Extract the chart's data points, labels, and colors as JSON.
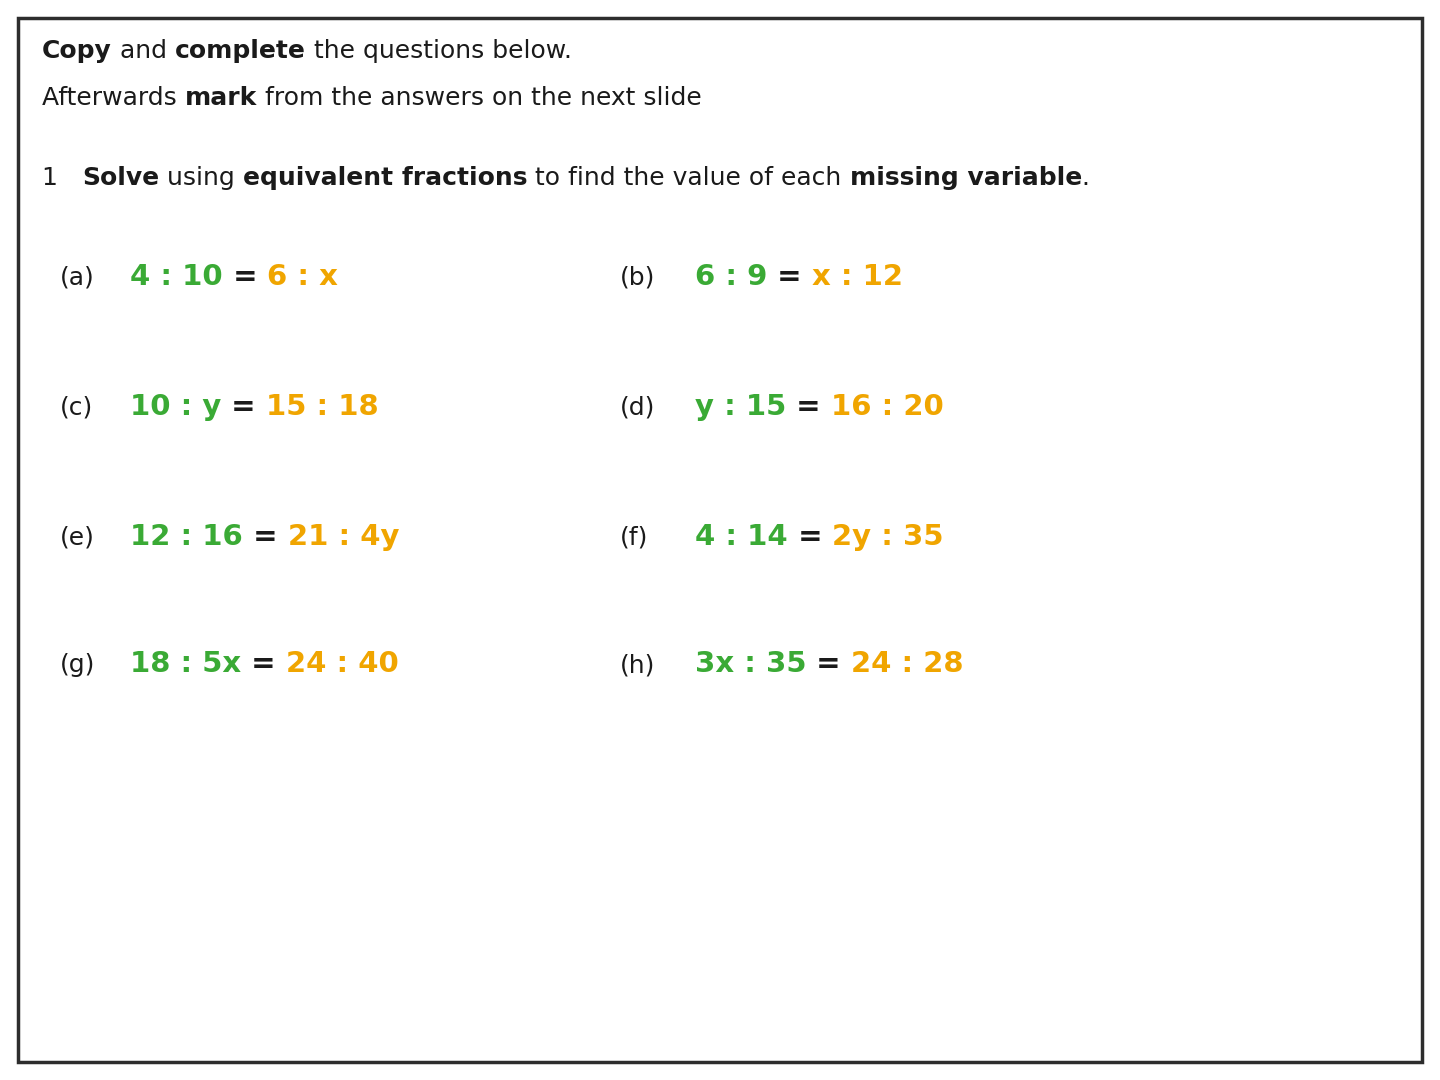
{
  "background_color": "#ffffff",
  "border_color": "#2d2d2d",
  "header_line1_parts": [
    {
      "text": "Copy",
      "bold": true,
      "color": "#1a1a1a"
    },
    {
      "text": " and ",
      "bold": false,
      "color": "#1a1a1a"
    },
    {
      "text": "complete",
      "bold": true,
      "color": "#1a1a1a"
    },
    {
      "text": " the questions below.",
      "bold": false,
      "color": "#1a1a1a"
    }
  ],
  "header_line2_parts": [
    {
      "text": "Afterwards ",
      "bold": false,
      "color": "#1a1a1a"
    },
    {
      "text": "mark",
      "bold": true,
      "color": "#1a1a1a"
    },
    {
      "text": " from the answers on the next slide",
      "bold": false,
      "color": "#1a1a1a"
    }
  ],
  "question_header_parts": [
    {
      "text": "1   ",
      "bold": false,
      "color": "#1a1a1a"
    },
    {
      "text": "Solve",
      "bold": true,
      "color": "#1a1a1a"
    },
    {
      "text": " using ",
      "bold": false,
      "color": "#1a1a1a"
    },
    {
      "text": "equivalent fractions",
      "bold": true,
      "color": "#1a1a1a"
    },
    {
      "text": " to find the value of each ",
      "bold": false,
      "color": "#1a1a1a"
    },
    {
      "text": "missing variable",
      "bold": true,
      "color": "#1a1a1a"
    },
    {
      "text": ".",
      "bold": false,
      "color": "#1a1a1a"
    }
  ],
  "green": "#3aaa35",
  "orange": "#f0a500",
  "dark": "#1a1a1a",
  "questions": [
    {
      "label": "(a)",
      "parts": [
        {
          "text": "4 : 10",
          "color": "#3aaa35",
          "bold": true
        },
        {
          "text": " = ",
          "color": "#1a1a1a",
          "bold": true
        },
        {
          "text": "6 : x",
          "color": "#f0a500",
          "bold": true
        }
      ],
      "col": 0,
      "row": 0
    },
    {
      "label": "(b)",
      "parts": [
        {
          "text": "6 : 9",
          "color": "#3aaa35",
          "bold": true
        },
        {
          "text": " = ",
          "color": "#1a1a1a",
          "bold": true
        },
        {
          "text": "x : 12",
          "color": "#f0a500",
          "bold": true
        }
      ],
      "col": 1,
      "row": 0
    },
    {
      "label": "(c)",
      "parts": [
        {
          "text": "10 : y",
          "color": "#3aaa35",
          "bold": true
        },
        {
          "text": " = ",
          "color": "#1a1a1a",
          "bold": true
        },
        {
          "text": "15 : 18",
          "color": "#f0a500",
          "bold": true
        }
      ],
      "col": 0,
      "row": 1
    },
    {
      "label": "(d)",
      "parts": [
        {
          "text": "y : 15",
          "color": "#3aaa35",
          "bold": true
        },
        {
          "text": " = ",
          "color": "#1a1a1a",
          "bold": true
        },
        {
          "text": "16 : 20",
          "color": "#f0a500",
          "bold": true
        }
      ],
      "col": 1,
      "row": 1
    },
    {
      "label": "(e)",
      "parts": [
        {
          "text": "12 : 16",
          "color": "#3aaa35",
          "bold": true
        },
        {
          "text": " = ",
          "color": "#1a1a1a",
          "bold": true
        },
        {
          "text": "21 : 4y",
          "color": "#f0a500",
          "bold": true
        }
      ],
      "col": 0,
      "row": 2
    },
    {
      "label": "(f)",
      "parts": [
        {
          "text": "4 : 14",
          "color": "#3aaa35",
          "bold": true
        },
        {
          "text": " = ",
          "color": "#1a1a1a",
          "bold": true
        },
        {
          "text": "2y : 35",
          "color": "#f0a500",
          "bold": true
        }
      ],
      "col": 1,
      "row": 2
    },
    {
      "label": "(g)",
      "parts": [
        {
          "text": "18 : 5x",
          "color": "#3aaa35",
          "bold": true
        },
        {
          "text": " = ",
          "color": "#1a1a1a",
          "bold": true
        },
        {
          "text": "24 : 40",
          "color": "#f0a500",
          "bold": true
        }
      ],
      "col": 0,
      "row": 3
    },
    {
      "label": "(h)",
      "parts": [
        {
          "text": "3x : 35",
          "color": "#3aaa35",
          "bold": true
        },
        {
          "text": " = ",
          "color": "#1a1a1a",
          "bold": true
        },
        {
          "text": "24 : 28",
          "color": "#f0a500",
          "bold": true
        }
      ],
      "col": 1,
      "row": 3
    }
  ],
  "header_fontsize": 18,
  "question_header_fontsize": 18,
  "label_fontsize": 18,
  "equation_fontsize": 21
}
